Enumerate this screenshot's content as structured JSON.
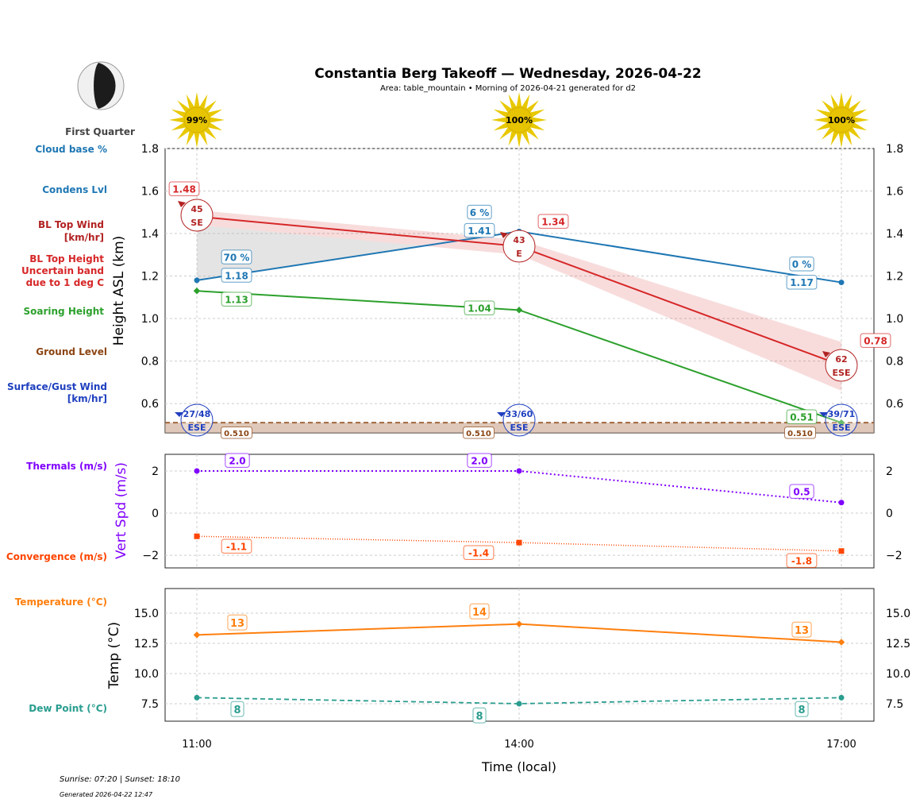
{
  "title": "Constantia Berg Takeoff — Wednesday, 2026-04-22",
  "subtitle": "Area: table_mountain • Morning of 2026-04-21 generated for d2",
  "moon": {
    "phase": "First Quarter",
    "icon": "moon-first-quarter-icon"
  },
  "footer": {
    "sun_times": "Sunrise: 07:20 | Sunset: 18:10",
    "generated": "Generated 2026-04-22 12:47"
  },
  "row_labels": {
    "cloud_base": "Cloud base %",
    "condens": "Condens Lvl",
    "bl_wind": [
      "BL Top Wind",
      "[km/hr]"
    ],
    "bl_height": [
      "BL Top Height",
      "Uncertain band",
      "due to 1 deg C"
    ],
    "soaring": "Soaring Height",
    "ground": "Ground Level",
    "surface_wind": [
      "Surface/Gust Wind",
      "[km/hr]"
    ],
    "thermals": "Thermals (m/s)",
    "convergence": "Convergence (m/s)",
    "temperature": "Temperature (°C)",
    "dew_point": "Dew Point (°C)"
  },
  "colors": {
    "cloud": "#1f77b4",
    "bl": "#d62728",
    "bl_wind": "#b22222",
    "soaring": "#2ca02c",
    "ground": "#8b4513",
    "surface": "#1f3fbf",
    "thermal": "#8000ff",
    "convergence": "#ff4500",
    "temp": "#ff7f0e",
    "dew": "#2a9d8f",
    "sun": "#e8c800"
  },
  "chart_data": [
    {
      "type": "line",
      "ylabel": "Height ASL (km)",
      "ylim": [
        0.462,
        1.8
      ],
      "yticks": [
        0.6,
        0.8,
        1.0,
        1.2,
        1.4,
        1.6,
        1.8
      ],
      "grid": true,
      "x": [
        "11:00",
        "14:00",
        "17:00"
      ],
      "sun_percent": [
        "99%",
        "100%",
        "100%"
      ],
      "condens_level": [
        1.18,
        1.41,
        1.17
      ],
      "condens_labels": [
        "1.18",
        "1.41",
        "1.17"
      ],
      "cloud_base_percent": [
        "70 %",
        "6 %",
        "0 %"
      ],
      "bl_top": [
        1.48,
        1.34,
        0.78
      ],
      "bl_top_labels": [
        "1.48",
        "1.34",
        "0.78"
      ],
      "bl_top_band_upper": [
        1.51,
        1.37,
        0.89
      ],
      "bl_top_band_lower": [
        1.44,
        1.3,
        0.66
      ],
      "bl_wind_speed": [
        "45",
        "43",
        "62"
      ],
      "bl_wind_dir": [
        "SE",
        "E",
        "ESE"
      ],
      "soaring_height": [
        1.13,
        1.04,
        0.51
      ],
      "soaring_labels": [
        "1.13",
        "1.04",
        "0.51"
      ],
      "ground_level": 0.51,
      "ground_labels": [
        "0.510",
        "0.510",
        "0.510"
      ],
      "surface_wind": [
        "27/48",
        "33/60",
        "39/71"
      ],
      "surface_wind_dir": [
        "ESE",
        "ESE",
        "ESE"
      ]
    },
    {
      "type": "line",
      "ylabel": "Vert Spd (m/s)",
      "ylim": [
        -2.6,
        2.79
      ],
      "yticks": [
        -2,
        0,
        2
      ],
      "grid": true,
      "x": [
        "11:00",
        "14:00",
        "17:00"
      ],
      "thermals": [
        2.0,
        2.0,
        0.5
      ],
      "thermal_labels": [
        "2.0",
        "2.0",
        "0.5"
      ],
      "convergence": [
        -1.1,
        -1.4,
        -1.8
      ],
      "convergence_labels": [
        "-1.1",
        "-1.4",
        "-1.8"
      ]
    },
    {
      "type": "line",
      "ylabel": "Temp (°C)",
      "xlabel": "Time (local)",
      "ylim": [
        6.05,
        17.04
      ],
      "yticks": [
        7.5,
        10.0,
        12.5,
        15.0
      ],
      "ytick_labels": [
        "7.5",
        "10.0",
        "12.5",
        "15.0"
      ],
      "grid": true,
      "x": [
        "11:00",
        "14:00",
        "17:00"
      ],
      "temperature": [
        13.2,
        14.1,
        12.6
      ],
      "temperature_labels": [
        "13",
        "14",
        "13"
      ],
      "dew_point": [
        8.0,
        7.5,
        8.0
      ],
      "dew_point_labels": [
        "8",
        "8",
        "8"
      ]
    }
  ]
}
